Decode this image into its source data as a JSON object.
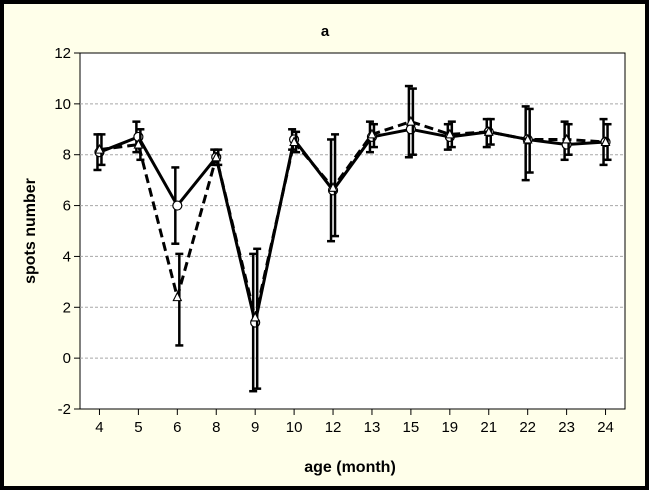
{
  "chart_data": {
    "type": "line",
    "title": "a",
    "xlabel": "age (month)",
    "ylabel": "spots number",
    "categories": [
      "4",
      "5",
      "6",
      "8",
      "9",
      "10",
      "12",
      "13",
      "15",
      "19",
      "21",
      "22",
      "23",
      "24"
    ],
    "ylim": [
      -2,
      12
    ],
    "yticks": [
      -2,
      0,
      2,
      4,
      6,
      8,
      10,
      12
    ],
    "grid": "horizontal dashed",
    "legend": "none",
    "series": [
      {
        "style": "solid",
        "marker": "circle",
        "values": [
          8.1,
          8.7,
          6.0,
          7.9,
          1.4,
          8.6,
          6.6,
          8.7,
          9.0,
          8.7,
          8.9,
          8.6,
          8.4,
          8.5
        ],
        "err_low": [
          7.4,
          8.1,
          4.5,
          7.6,
          -1.3,
          8.2,
          4.6,
          8.1,
          7.9,
          8.2,
          8.3,
          7.0,
          7.8,
          7.6
        ],
        "err_high": [
          8.8,
          9.3,
          7.5,
          8.2,
          4.1,
          9.0,
          8.6,
          9.3,
          10.7,
          9.2,
          9.4,
          9.9,
          9.3,
          9.4
        ]
      },
      {
        "style": "dashed",
        "marker": "triangle",
        "values": [
          8.2,
          8.4,
          2.4,
          7.9,
          1.6,
          8.5,
          6.7,
          8.8,
          9.3,
          8.8,
          8.9,
          8.6,
          8.6,
          8.5
        ],
        "err_low": [
          7.6,
          7.8,
          0.5,
          7.6,
          -1.2,
          8.1,
          4.8,
          8.3,
          8.0,
          8.3,
          8.4,
          7.3,
          8.0,
          7.8
        ],
        "err_high": [
          8.8,
          9.0,
          4.1,
          8.2,
          4.3,
          8.9,
          8.8,
          9.2,
          10.6,
          9.3,
          9.4,
          9.8,
          9.2,
          9.2
        ]
      }
    ]
  }
}
